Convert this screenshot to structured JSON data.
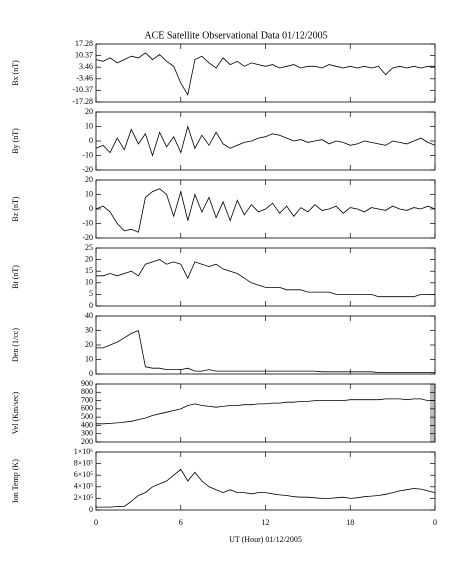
{
  "chart_data": [
    {
      "type": "line",
      "title": "ACE Satellite Observational Data   01/12/2005",
      "ylabel": "Bx (nT)",
      "color": "#000000",
      "ylim": [
        -17.28,
        17.28
      ],
      "yticks": [
        -17.28,
        -10.37,
        -3.46,
        3.46,
        10.37,
        17.28
      ],
      "values": [
        8,
        7,
        9,
        6,
        8,
        10,
        9,
        12,
        8,
        11,
        7,
        4,
        -6,
        -13,
        8,
        10,
        6,
        3,
        9,
        5,
        7,
        4,
        6,
        5,
        4,
        5,
        3,
        4,
        5,
        3,
        4,
        4,
        3,
        5,
        4,
        3,
        4,
        3,
        4,
        3,
        4,
        -1,
        3,
        4,
        3,
        4,
        3,
        4,
        4
      ]
    },
    {
      "type": "line",
      "ylabel": "By (nT)",
      "color": "#000000",
      "ylim": [
        -20,
        20
      ],
      "yticks": [
        -20,
        -10,
        0,
        10,
        20
      ],
      "values": [
        -5,
        -3,
        -8,
        2,
        -6,
        8,
        -2,
        5,
        -10,
        6,
        -4,
        3,
        -8,
        10,
        -5,
        4,
        -3,
        6,
        -2,
        -5,
        -3,
        -1,
        0,
        2,
        3,
        5,
        4,
        2,
        0,
        1,
        -1,
        0,
        1,
        -2,
        0,
        -1,
        -3,
        -2,
        0,
        -1,
        -2,
        -3,
        0,
        -1,
        -2,
        0,
        2,
        -1,
        -3
      ]
    },
    {
      "type": "line",
      "ylabel": "Bz (nT)",
      "color": "#000000",
      "ylim": [
        -20,
        20
      ],
      "yticks": [
        -20,
        -10,
        0,
        10,
        20
      ],
      "values": [
        0,
        2,
        -2,
        -10,
        -15,
        -14,
        -16,
        8,
        12,
        14,
        10,
        -5,
        12,
        -8,
        10,
        -2,
        8,
        -6,
        5,
        -8,
        6,
        -4,
        3,
        -2,
        0,
        4,
        -3,
        2,
        -5,
        1,
        -2,
        3,
        -1,
        0,
        2,
        -3,
        1,
        0,
        -2,
        1,
        0,
        -1,
        2,
        0,
        -1,
        1,
        0,
        2,
        0
      ]
    },
    {
      "type": "line",
      "ylabel": "Bt (nT)",
      "color": "#000000",
      "ylim": [
        0,
        25
      ],
      "yticks": [
        0,
        5,
        10,
        15,
        20,
        25
      ],
      "values": [
        13,
        13,
        14,
        13,
        14,
        15,
        13,
        18,
        19,
        20,
        18,
        19,
        18,
        12,
        19,
        18,
        17,
        18,
        16,
        15,
        14,
        12,
        10,
        9,
        8,
        8,
        8,
        7,
        7,
        7,
        6,
        6,
        6,
        6,
        5,
        5,
        5,
        5,
        5,
        5,
        4,
        4,
        4,
        4,
        4,
        4,
        5,
        5,
        5
      ]
    },
    {
      "type": "line",
      "ylabel": "Den (1/cc)",
      "color": "#000000",
      "ylim": [
        0,
        40
      ],
      "yticks": [
        0,
        10,
        20,
        30,
        40
      ],
      "values": [
        18,
        18,
        20,
        22,
        25,
        28,
        30,
        5,
        4,
        4,
        3,
        3,
        3,
        4,
        2,
        2,
        3,
        2,
        2,
        2,
        2,
        2,
        2,
        2,
        2,
        2,
        2,
        2,
        2,
        2,
        2,
        2,
        1.5,
        1.5,
        1.5,
        1.5,
        1.5,
        1.5,
        1.5,
        1.5,
        1,
        1,
        1,
        1,
        1,
        1,
        1,
        1,
        1
      ]
    },
    {
      "type": "line",
      "ylabel": "Vel (Km/sec)",
      "color": "#000000",
      "ylim": [
        200,
        900
      ],
      "yticks": [
        200,
        300,
        400,
        500,
        600,
        700,
        800,
        900
      ],
      "values": [
        420,
        420,
        425,
        430,
        440,
        450,
        470,
        490,
        520,
        540,
        560,
        580,
        600,
        640,
        660,
        640,
        630,
        620,
        630,
        640,
        640,
        650,
        650,
        660,
        660,
        670,
        670,
        680,
        680,
        690,
        690,
        700,
        700,
        700,
        700,
        700,
        710,
        710,
        710,
        710,
        710,
        720,
        720,
        720,
        710,
        720,
        720,
        700,
        700
      ]
    },
    {
      "type": "line",
      "ylabel": "Ion Temp (K)",
      "color": "#000000",
      "xlabel": "UT (Hour)   01/12/2005",
      "ylim": [
        0,
        1000000
      ],
      "yticks": [
        0,
        {
          "value": 200000,
          "label": "2×10⁵"
        },
        {
          "value": 400000,
          "label": "4×10⁵"
        },
        {
          "value": 600000,
          "label": "6×10⁵"
        },
        {
          "value": 800000,
          "label": "8×10⁵"
        },
        {
          "value": 1000000,
          "label": "1×10⁶"
        }
      ],
      "xlim": [
        0,
        24
      ],
      "xticks": [
        0,
        6,
        12,
        18,
        {
          "value": 24,
          "label": "0"
        }
      ],
      "x": [
        0,
        0.5,
        1,
        1.5,
        2,
        2.5,
        3,
        3.5,
        4,
        4.5,
        5,
        5.5,
        6,
        6.5,
        7,
        7.5,
        8,
        8.5,
        9,
        9.5,
        10,
        10.5,
        11,
        11.5,
        12,
        12.5,
        13,
        13.5,
        14,
        14.5,
        15,
        15.5,
        16,
        16.5,
        17,
        17.5,
        18,
        18.5,
        19,
        19.5,
        20,
        20.5,
        21,
        21.5,
        22,
        22.5,
        23,
        23.5,
        24
      ],
      "values": [
        50000,
        50000,
        50000,
        60000,
        60000,
        150000,
        250000,
        300000,
        400000,
        450000,
        500000,
        600000,
        700000,
        500000,
        650000,
        500000,
        400000,
        350000,
        300000,
        350000,
        300000,
        300000,
        280000,
        300000,
        300000,
        280000,
        260000,
        250000,
        230000,
        220000,
        220000,
        210000,
        200000,
        200000,
        210000,
        220000,
        200000,
        210000,
        230000,
        240000,
        250000,
        270000,
        300000,
        330000,
        350000,
        370000,
        360000,
        330000,
        300000
      ]
    }
  ]
}
